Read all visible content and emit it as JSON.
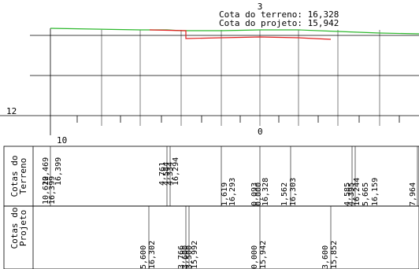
{
  "header": {
    "station": "3",
    "terrain_label": "Cota do terreno: 16,328",
    "project_label": "Cota do projeto: 15,942"
  },
  "axis": {
    "elevation_label": "12",
    "station_left": "10",
    "station_center": "0"
  },
  "table": {
    "terrain_title": [
      "Cotas do",
      "Terreno"
    ],
    "project_title": [
      "Cotas do",
      "Projeto"
    ]
  },
  "colors": {
    "terrain_line": "#2db82d",
    "project_line": "#e02020",
    "grid": "#000000",
    "background": "#ffffff"
  },
  "terrain_labels": [
    {
      "distance": "10,622",
      "elevation": "16,399"
    },
    {
      "distance": "10,469",
      "elevation": "16,399"
    },
    {
      "distance": "4,761",
      "elevation": "16,294"
    },
    {
      "distance": "4,584",
      "elevation": "16,294"
    },
    {
      "distance": "4,334",
      "elevation": "16,294"
    },
    {
      "distance": "1,619",
      "elevation": "16,293"
    },
    {
      "distance": "0,093",
      "elevation": "16,328"
    },
    {
      "distance": "0,000",
      "elevation": "16,328"
    },
    {
      "distance": "1,562",
      "elevation": "16,303"
    },
    {
      "distance": "4,585",
      "elevation": "16,244"
    },
    {
      "distance": "4,395",
      "elevation": "16,244"
    },
    {
      "distance": "5,665",
      "elevation": "16,159"
    },
    {
      "distance": "7,964",
      "elevation": ""
    }
  ],
  "project_labels": [
    {
      "distance": "5,600",
      "elevation": "16,302"
    },
    {
      "distance": "3,766",
      "elevation": "15,992"
    },
    {
      "distance": "3,600",
      "elevation": "15,992"
    },
    {
      "distance": "3,500",
      "elevation": "15,992"
    },
    {
      "distance": "0,000",
      "elevation": "15,942"
    },
    {
      "distance": "3,600",
      "elevation": "15,852"
    }
  ]
}
